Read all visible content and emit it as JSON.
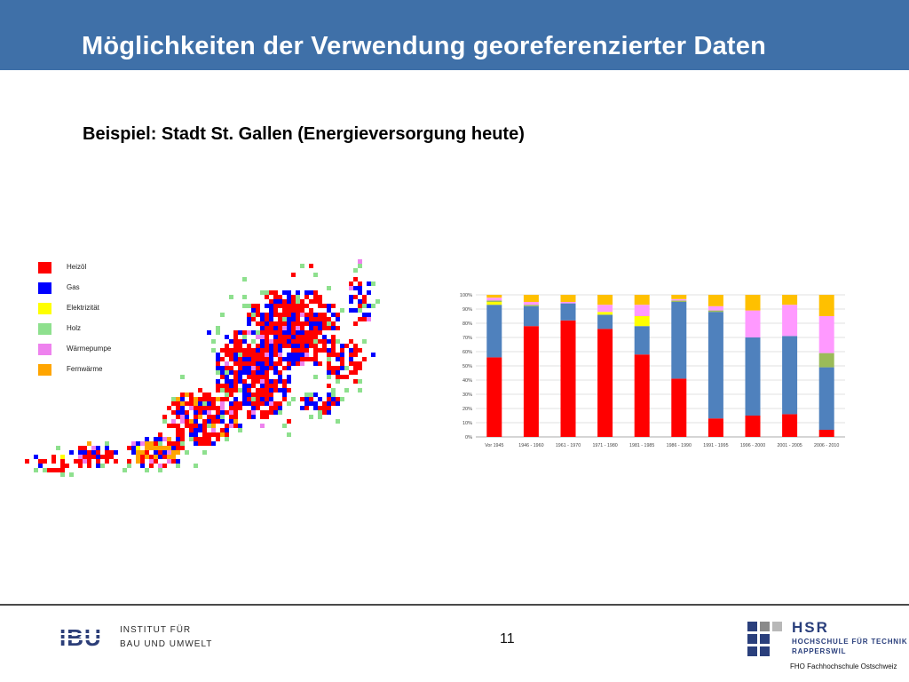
{
  "slide": {
    "title": "Möglichkeiten der Verwendung georeferenzierter Daten",
    "subtitle": "Beispiel: Stadt St. Gallen (Energieversorgung heute)",
    "page_number": "11"
  },
  "map": {
    "legend": [
      {
        "label": "Heizöl",
        "color": "#ff0000"
      },
      {
        "label": "Gas",
        "color": "#0000ff"
      },
      {
        "label": "Elektrizität",
        "color": "#ffff00"
      },
      {
        "label": "Holz",
        "color": "#8ee08e"
      },
      {
        "label": "Wärmepumpe",
        "color": "#ee82ee"
      },
      {
        "label": "Fernwärme",
        "color": "#ffa500"
      }
    ]
  },
  "chart_data": {
    "type": "bar",
    "stacked": true,
    "categories": [
      "Vor 1945",
      "1946 - 1960",
      "1961 - 1970",
      "1971 - 1980",
      "1981 - 1985",
      "1986 - 1990",
      "1991 - 1995",
      "1996 - 2000",
      "2001 - 2005",
      "2006 - 2010"
    ],
    "ylim": [
      0,
      100
    ],
    "yticks": [
      "0%",
      "10%",
      "20%",
      "30%",
      "40%",
      "50%",
      "60%",
      "70%",
      "80%",
      "90%",
      "100%"
    ],
    "grid": true,
    "legend_position": "right",
    "series": [
      {
        "name": "Heizöl",
        "color": "#ff0000",
        "values": [
          56,
          78,
          82,
          76,
          58,
          41,
          13,
          15,
          16,
          5
        ]
      },
      {
        "name": "Gas",
        "color": "#4f81bd",
        "values": [
          37,
          14,
          12,
          10,
          20,
          54,
          75,
          55,
          55,
          44
        ]
      },
      {
        "name": "Elektrizität",
        "color": "#ffff00",
        "values": [
          2,
          0,
          0,
          2,
          7,
          0,
          0,
          0,
          0,
          0
        ]
      },
      {
        "name": "Holz",
        "color": "#9bbb59",
        "values": [
          1,
          1,
          0,
          0,
          0,
          1,
          1,
          0,
          0,
          10
        ]
      },
      {
        "name": "Wärmepumpe",
        "color": "#ff99ff",
        "values": [
          2,
          2,
          1,
          5,
          8,
          1,
          3,
          19,
          22,
          26
        ]
      },
      {
        "name": "Fernwärme",
        "color": "#ffc000",
        "values": [
          2,
          5,
          5,
          7,
          7,
          3,
          8,
          11,
          7,
          15
        ]
      }
    ]
  },
  "footer": {
    "ibu": {
      "letters": "IBU",
      "line1": "INSTITUT FÜR",
      "line2": "BAU UND UMWELT"
    },
    "hsr": {
      "name": "HSR",
      "line1": "HOCHSCHULE FÜR TECHNIK",
      "line2": "RAPPERSWIL",
      "tagline": "FHO Fachhochschule Ostschweiz"
    }
  }
}
